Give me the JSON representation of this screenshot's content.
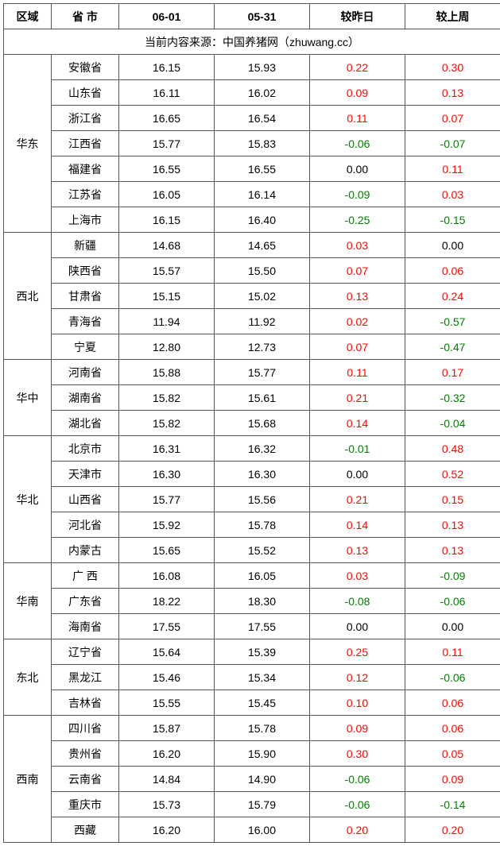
{
  "header": {
    "region": "区域",
    "province": "省 市",
    "date1": "06-01",
    "date2": "05-31",
    "delta_day": "较昨日",
    "delta_week": "较上周"
  },
  "source_line": "当前内容来源：中国养猪网（zhuwang.cc）",
  "colors": {
    "positive": "#ff0000",
    "negative": "#008000",
    "zero": "#000000",
    "border": "#555555"
  },
  "regions": [
    {
      "name": "华东",
      "rows": [
        {
          "province": "安徽省",
          "d1": "16.15",
          "d2": "15.93",
          "c1": "0.22",
          "c2": "0.30"
        },
        {
          "province": "山东省",
          "d1": "16.11",
          "d2": "16.02",
          "c1": "0.09",
          "c2": "0.13"
        },
        {
          "province": "浙江省",
          "d1": "16.65",
          "d2": "16.54",
          "c1": "0.11",
          "c2": "0.07"
        },
        {
          "province": "江西省",
          "d1": "15.77",
          "d2": "15.83",
          "c1": "-0.06",
          "c2": "-0.07"
        },
        {
          "province": "福建省",
          "d1": "16.55",
          "d2": "16.55",
          "c1": "0.00",
          "c2": "0.11"
        },
        {
          "province": "江苏省",
          "d1": "16.05",
          "d2": "16.14",
          "c1": "-0.09",
          "c2": "0.03"
        },
        {
          "province": "上海市",
          "d1": "16.15",
          "d2": "16.40",
          "c1": "-0.25",
          "c2": "-0.15"
        }
      ]
    },
    {
      "name": "西北",
      "rows": [
        {
          "province": "新疆",
          "d1": "14.68",
          "d2": "14.65",
          "c1": "0.03",
          "c2": "0.00"
        },
        {
          "province": "陕西省",
          "d1": "15.57",
          "d2": "15.50",
          "c1": "0.07",
          "c2": "0.06"
        },
        {
          "province": "甘肃省",
          "d1": "15.15",
          "d2": "15.02",
          "c1": "0.13",
          "c2": "0.24"
        },
        {
          "province": "青海省",
          "d1": "11.94",
          "d2": "11.92",
          "c1": "0.02",
          "c2": "-0.57"
        },
        {
          "province": "宁夏",
          "d1": "12.80",
          "d2": "12.73",
          "c1": "0.07",
          "c2": "-0.47"
        }
      ]
    },
    {
      "name": "华中",
      "rows": [
        {
          "province": "河南省",
          "d1": "15.88",
          "d2": "15.77",
          "c1": "0.11",
          "c2": "0.17"
        },
        {
          "province": "湖南省",
          "d1": "15.82",
          "d2": "15.61",
          "c1": "0.21",
          "c2": "-0.32"
        },
        {
          "province": "湖北省",
          "d1": "15.82",
          "d2": "15.68",
          "c1": "0.14",
          "c2": "-0.04"
        }
      ]
    },
    {
      "name": "华北",
      "rows": [
        {
          "province": "北京市",
          "d1": "16.31",
          "d2": "16.32",
          "c1": "-0.01",
          "c2": "0.48"
        },
        {
          "province": "天津市",
          "d1": "16.30",
          "d2": "16.30",
          "c1": "0.00",
          "c2": "0.52"
        },
        {
          "province": "山西省",
          "d1": "15.77",
          "d2": "15.56",
          "c1": "0.21",
          "c2": "0.15"
        },
        {
          "province": "河北省",
          "d1": "15.92",
          "d2": "15.78",
          "c1": "0.14",
          "c2": "0.13"
        },
        {
          "province": "内蒙古",
          "d1": "15.65",
          "d2": "15.52",
          "c1": "0.13",
          "c2": "0.13"
        }
      ]
    },
    {
      "name": "华南",
      "rows": [
        {
          "province": "广 西",
          "d1": "16.08",
          "d2": "16.05",
          "c1": "0.03",
          "c2": "-0.09"
        },
        {
          "province": "广东省",
          "d1": "18.22",
          "d2": "18.30",
          "c1": "-0.08",
          "c2": "-0.06"
        },
        {
          "province": "海南省",
          "d1": "17.55",
          "d2": "17.55",
          "c1": "0.00",
          "c2": "0.00"
        }
      ]
    },
    {
      "name": "东北",
      "rows": [
        {
          "province": "辽宁省",
          "d1": "15.64",
          "d2": "15.39",
          "c1": "0.25",
          "c2": "0.11"
        },
        {
          "province": "黑龙江",
          "d1": "15.46",
          "d2": "15.34",
          "c1": "0.12",
          "c2": "-0.06"
        },
        {
          "province": "吉林省",
          "d1": "15.55",
          "d2": "15.45",
          "c1": "0.10",
          "c2": "0.06"
        }
      ]
    },
    {
      "name": "西南",
      "rows": [
        {
          "province": "四川省",
          "d1": "15.87",
          "d2": "15.78",
          "c1": "0.09",
          "c2": "0.06"
        },
        {
          "province": "贵州省",
          "d1": "16.20",
          "d2": "15.90",
          "c1": "0.30",
          "c2": "0.05"
        },
        {
          "province": "云南省",
          "d1": "14.84",
          "d2": "14.90",
          "c1": "-0.06",
          "c2": "0.09"
        },
        {
          "province": "重庆市",
          "d1": "15.73",
          "d2": "15.79",
          "c1": "-0.06",
          "c2": "-0.14"
        },
        {
          "province": "西藏",
          "d1": "16.20",
          "d2": "16.00",
          "c1": "0.20",
          "c2": "0.20"
        }
      ]
    }
  ]
}
